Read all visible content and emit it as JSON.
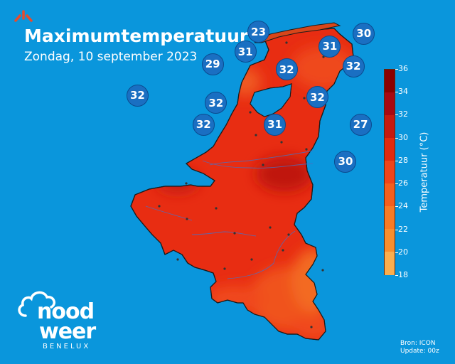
{
  "header": {
    "title": "Maximumtemperatuur",
    "subtitle": "Zondag, 10 september 2023"
  },
  "legend": {
    "title": "Temperatuur (°C)",
    "min": 18,
    "max": 36,
    "ticks": [
      "36",
      "34",
      "32",
      "30",
      "28",
      "26",
      "24",
      "22",
      "20",
      "18"
    ],
    "colors": [
      "#8b0000",
      "#a80812",
      "#c51a10",
      "#e12a0e",
      "#f0441a",
      "#f45f1e",
      "#f77b26",
      "#f98e2e",
      "#fbae4e"
    ]
  },
  "stations": [
    {
      "value": "23",
      "lon": 4.8,
      "lat": 53.48
    },
    {
      "value": "30",
      "lon": 6.41,
      "lat": 53.43
    },
    {
      "value": "31",
      "lon": 4.6,
      "lat": 52.93
    },
    {
      "value": "31",
      "lon": 5.89,
      "lat": 53.07
    },
    {
      "value": "29",
      "lon": 4.1,
      "lat": 52.58
    },
    {
      "value": "32",
      "lon": 5.23,
      "lat": 52.44
    },
    {
      "value": "32",
      "lon": 6.25,
      "lat": 52.52
    },
    {
      "value": "32",
      "lon": 2.95,
      "lat": 51.72
    },
    {
      "value": "32",
      "lon": 5.7,
      "lat": 51.67
    },
    {
      "value": "32",
      "lon": 4.15,
      "lat": 51.51
    },
    {
      "value": "32",
      "lon": 3.96,
      "lat": 50.92
    },
    {
      "value": "31",
      "lon": 5.05,
      "lat": 50.92
    },
    {
      "value": "27",
      "lon": 6.36,
      "lat": 50.92
    },
    {
      "value": "30",
      "lon": 6.13,
      "lat": 49.9
    }
  ],
  "source": {
    "line1": "Bron: ICON",
    "line2": "Update: 00z"
  },
  "logo": {
    "word1": "nood",
    "word2": "weer",
    "sub": "BENELUX"
  }
}
